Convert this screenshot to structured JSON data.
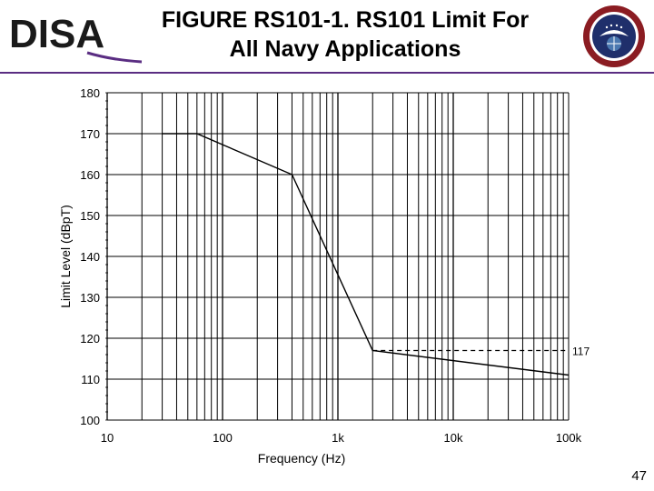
{
  "header": {
    "logo_text": "DISA",
    "title_line1": "FIGURE RS101-1.  RS101 Limit For",
    "title_line2": "All Navy Applications"
  },
  "colors": {
    "brand_purple": "#5a2d82",
    "seal_red": "#8b1c22",
    "seal_blue": "#1f2f6b"
  },
  "chart_data": {
    "type": "line",
    "xlabel": "Frequency (Hz)",
    "ylabel": "Limit Level (dBpT)",
    "x_scale": "log",
    "xlim": [
      10,
      100000
    ],
    "ylim": [
      100,
      180
    ],
    "x_ticks": [
      {
        "value": 10,
        "label": "10"
      },
      {
        "value": 100,
        "label": "100"
      },
      {
        "value": 1000,
        "label": "1k"
      },
      {
        "value": 10000,
        "label": "10k"
      },
      {
        "value": 100000,
        "label": "100k"
      }
    ],
    "y_ticks": [
      100,
      110,
      120,
      130,
      140,
      150,
      160,
      170,
      180
    ],
    "grid": true,
    "series": [
      {
        "values": [
          [
            30,
            170
          ],
          [
            60,
            170
          ],
          [
            400,
            160
          ],
          [
            2000,
            117
          ],
          [
            100000,
            111
          ]
        ],
        "style": "solid"
      },
      {
        "values": [
          [
            2000,
            117
          ],
          [
            100000,
            117
          ]
        ],
        "style": "dashed"
      }
    ],
    "annotations": [
      {
        "x": 100000,
        "y": 117,
        "text": "117"
      }
    ]
  },
  "footer": {
    "page_number": "47"
  }
}
